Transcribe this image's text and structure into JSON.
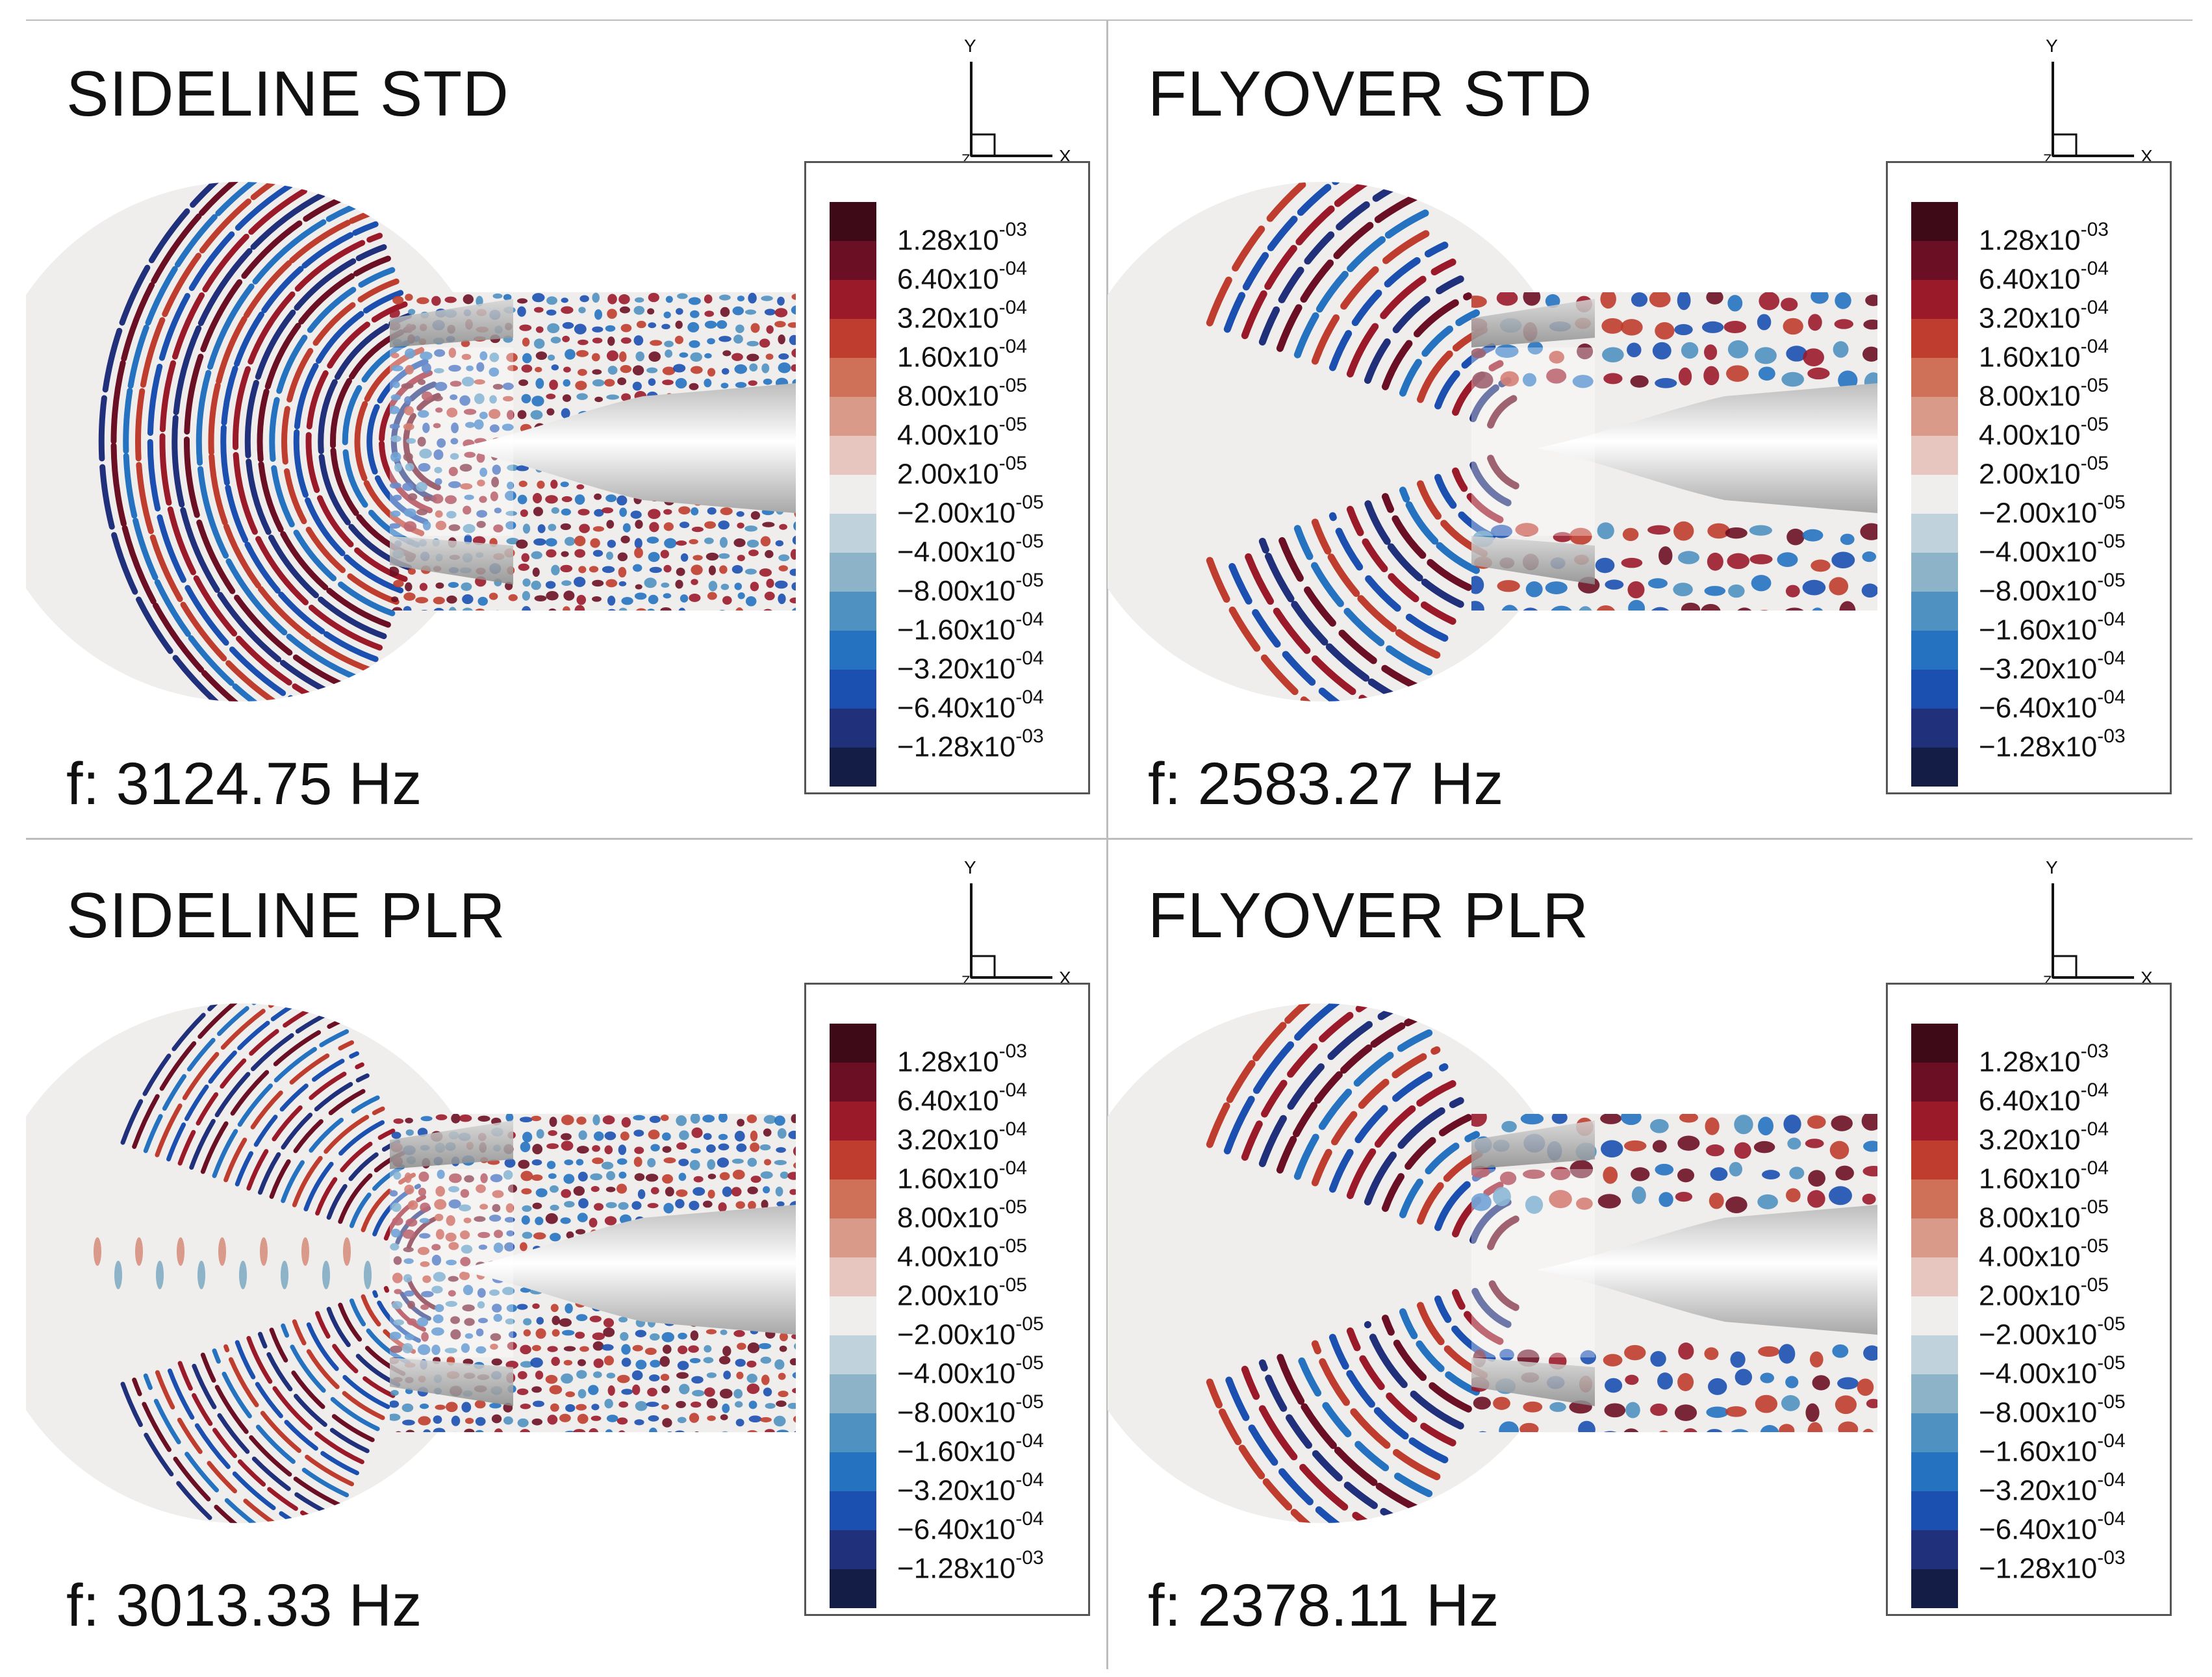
{
  "panels": [
    {
      "title": "SIDELINE STD",
      "frequency": "f: 3124.75 Hz",
      "pattern": "dense-full"
    },
    {
      "title": "FLYOVER STD",
      "frequency": "f: 2583.27 Hz",
      "pattern": "beams"
    },
    {
      "title": "SIDELINE PLR",
      "frequency": "f: 3013.33 Hz",
      "pattern": "dense-beams"
    },
    {
      "title": "FLYOVER PLR",
      "frequency": "f: 2378.11 Hz",
      "pattern": "beams"
    }
  ],
  "axes": {
    "x": "X",
    "y": "Y",
    "z": "Z"
  },
  "legend": [
    {
      "mantissa": "1.28x10",
      "exponent": "-03",
      "color": "#3f0a17"
    },
    {
      "mantissa": "6.40x10",
      "exponent": "-04",
      "color": "#6b0f24"
    },
    {
      "mantissa": "3.20x10",
      "exponent": "-04",
      "color": "#9b1a2a"
    },
    {
      "mantissa": "1.60x10",
      "exponent": "-04",
      "color": "#bf3d2e"
    },
    {
      "mantissa": "8.00x10",
      "exponent": "-05",
      "color": "#cf7058"
    },
    {
      "mantissa": "4.00x10",
      "exponent": "-05",
      "color": "#d99a89"
    },
    {
      "mantissa": "2.00x10",
      "exponent": "-05",
      "color": "#e8c6c0"
    },
    {
      "mantissa": "−2.00x10",
      "exponent": "-05",
      "color": "#f0eeed"
    },
    {
      "mantissa": "−4.00x10",
      "exponent": "-05",
      "color": "#c0d3dc"
    },
    {
      "mantissa": "−8.00x10",
      "exponent": "-05",
      "color": "#8db3c9"
    },
    {
      "mantissa": "−1.60x10",
      "exponent": "-04",
      "color": "#4f91c0"
    },
    {
      "mantissa": "−3.20x10",
      "exponent": "-04",
      "color": "#2572c0"
    },
    {
      "mantissa": "−6.40x10",
      "exponent": "-04",
      "color": "#1b4fb0"
    },
    {
      "mantissa": "−1.28x10",
      "exponent": "-03",
      "color": "#20307a"
    },
    {
      "color": "#141d45"
    }
  ]
}
